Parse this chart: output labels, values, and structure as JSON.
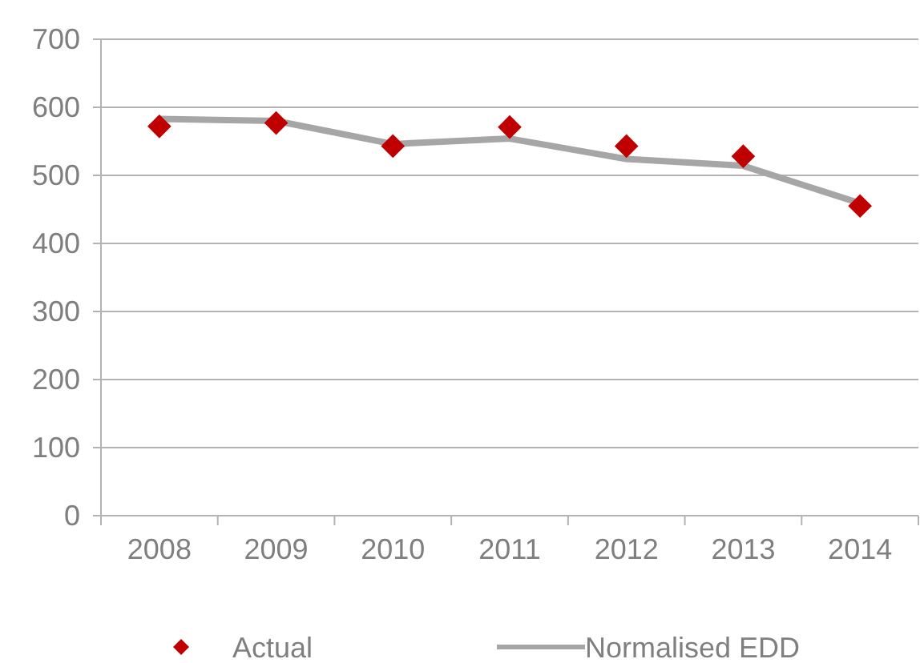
{
  "chart_data": {
    "type": "line",
    "categories": [
      "2008",
      "2009",
      "2010",
      "2011",
      "2012",
      "2013",
      "2014"
    ],
    "series": [
      {
        "name": "Actual",
        "type": "scatter",
        "color": "#c00000",
        "marker": "diamond",
        "values": [
          572,
          577,
          543,
          571,
          543,
          528,
          455
        ]
      },
      {
        "name": "Normalised EDD",
        "color": "#a6a6a6",
        "marker": "none",
        "values": [
          583,
          580,
          546,
          554,
          524,
          514,
          459
        ]
      }
    ],
    "ylim": [
      0,
      700
    ],
    "yticks": [
      0,
      100,
      200,
      300,
      400,
      500,
      600,
      700
    ],
    "grid": "y",
    "legend": "bottom"
  }
}
